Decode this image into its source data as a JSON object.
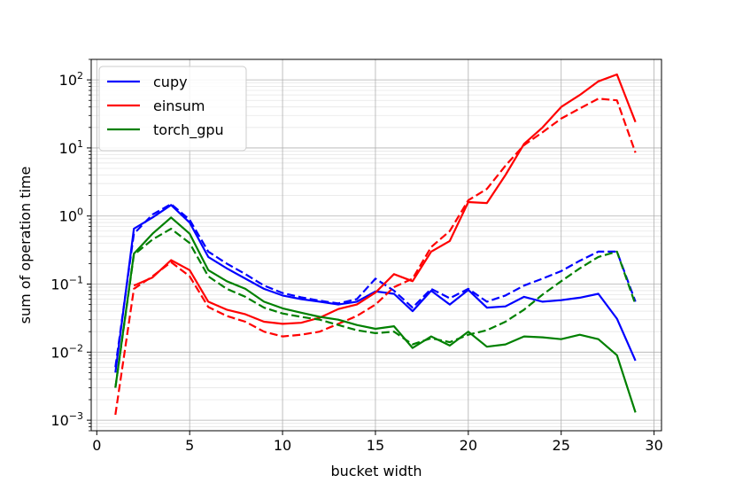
{
  "chart_data": {
    "type": "line",
    "title": "",
    "xlabel": "bucket width",
    "ylabel": "sum of operation time",
    "xlim": [
      -0.3,
      30.4
    ],
    "ylim": [
      0.0007,
      200
    ],
    "yscale": "log",
    "grid": "on",
    "legend_position": "upper left",
    "x_ticks": [
      0,
      5,
      10,
      15,
      20,
      25,
      30
    ],
    "y_ticks": [
      {
        "value": 0.001,
        "base": "10",
        "exp": "−3"
      },
      {
        "value": 0.01,
        "base": "10",
        "exp": "−2"
      },
      {
        "value": 0.1,
        "base": "10",
        "exp": "−1"
      },
      {
        "value": 1,
        "base": "10",
        "exp": "0"
      },
      {
        "value": 10,
        "base": "10",
        "exp": "1"
      },
      {
        "value": 100,
        "base": "10",
        "exp": "2"
      }
    ],
    "series": [
      {
        "name": "cupy",
        "color": "#0000ff",
        "style": "solid",
        "x": [
          1,
          2,
          3,
          4,
          5,
          6,
          7,
          8,
          9,
          10,
          11,
          12,
          13,
          14,
          15,
          16,
          17,
          18,
          19,
          20,
          21,
          22,
          23,
          24,
          25,
          26,
          27,
          28,
          29
        ],
        "y": [
          0.005,
          0.65,
          0.95,
          1.45,
          0.8,
          0.25,
          0.17,
          0.12,
          0.085,
          0.068,
          0.06,
          0.055,
          0.05,
          0.055,
          0.078,
          0.072,
          0.04,
          0.08,
          0.05,
          0.082,
          0.045,
          0.047,
          0.065,
          0.055,
          0.058,
          0.063,
          0.072,
          0.031,
          0.0075
        ]
      },
      {
        "name": "",
        "color": "#0000ff",
        "style": "dashed",
        "x": [
          1,
          2,
          3,
          4,
          5,
          6,
          7,
          8,
          9,
          10,
          11,
          12,
          13,
          14,
          15,
          16,
          17,
          18,
          19,
          20,
          21,
          22,
          23,
          24,
          25,
          26,
          27,
          28,
          29
        ],
        "y": [
          0.006,
          0.55,
          1.05,
          1.5,
          0.88,
          0.3,
          0.2,
          0.14,
          0.095,
          0.074,
          0.064,
          0.057,
          0.052,
          0.06,
          0.12,
          0.08,
          0.045,
          0.085,
          0.062,
          0.085,
          0.055,
          0.068,
          0.095,
          0.12,
          0.155,
          0.22,
          0.3,
          0.3,
          0.055
        ]
      },
      {
        "name": "einsum",
        "color": "#ff0000",
        "style": "solid",
        "x": [
          2,
          3,
          4,
          5,
          6,
          7,
          8,
          9,
          10,
          11,
          12,
          13,
          14,
          15,
          16,
          17,
          18,
          19,
          20,
          21,
          22,
          23,
          24,
          25,
          26,
          27,
          28,
          29
        ],
        "y": [
          0.095,
          0.125,
          0.225,
          0.16,
          0.055,
          0.042,
          0.036,
          0.028,
          0.026,
          0.027,
          0.032,
          0.043,
          0.05,
          0.075,
          0.14,
          0.11,
          0.3,
          0.43,
          1.6,
          1.55,
          4,
          11.5,
          20,
          40,
          60,
          95,
          120,
          24
        ]
      },
      {
        "name": "",
        "color": "#ff0000",
        "style": "dashed",
        "x": [
          1,
          2,
          3,
          4,
          5,
          6,
          7,
          8,
          9,
          10,
          11,
          12,
          13,
          14,
          15,
          16,
          17,
          18,
          19,
          20,
          21,
          22,
          23,
          24,
          25,
          26,
          27,
          28,
          29
        ],
        "y": [
          0.0012,
          0.085,
          0.13,
          0.21,
          0.13,
          0.046,
          0.034,
          0.028,
          0.02,
          0.017,
          0.018,
          0.02,
          0.026,
          0.034,
          0.05,
          0.09,
          0.12,
          0.35,
          0.6,
          1.7,
          2.5,
          5.5,
          11,
          17,
          27,
          38,
          53,
          50,
          8.5
        ]
      },
      {
        "name": "torch_gpu",
        "color": "#008000",
        "style": "solid",
        "x": [
          1,
          2,
          3,
          4,
          5,
          6,
          7,
          8,
          9,
          10,
          11,
          12,
          13,
          14,
          15,
          16,
          17,
          18,
          19,
          20,
          21,
          22,
          23,
          24,
          25,
          26,
          27,
          28,
          29
        ],
        "y": [
          0.003,
          0.28,
          0.55,
          0.95,
          0.55,
          0.16,
          0.11,
          0.085,
          0.055,
          0.044,
          0.038,
          0.033,
          0.03,
          0.025,
          0.022,
          0.024,
          0.0115,
          0.017,
          0.0125,
          0.02,
          0.012,
          0.013,
          0.017,
          0.0165,
          0.0155,
          0.018,
          0.0155,
          0.009,
          0.0013
        ]
      },
      {
        "name": "",
        "color": "#008000",
        "style": "dashed",
        "x": [
          1,
          2,
          3,
          4,
          5,
          6,
          7,
          8,
          9,
          10,
          11,
          12,
          13,
          14,
          15,
          16,
          17,
          18,
          19,
          20,
          21,
          22,
          23,
          24,
          25,
          26,
          27,
          28,
          29
        ],
        "y": [
          0.003,
          0.27,
          0.45,
          0.65,
          0.4,
          0.13,
          0.085,
          0.065,
          0.045,
          0.037,
          0.033,
          0.03,
          0.025,
          0.021,
          0.019,
          0.02,
          0.013,
          0.016,
          0.014,
          0.018,
          0.021,
          0.028,
          0.042,
          0.07,
          0.11,
          0.17,
          0.25,
          0.3,
          0.05
        ]
      }
    ]
  }
}
